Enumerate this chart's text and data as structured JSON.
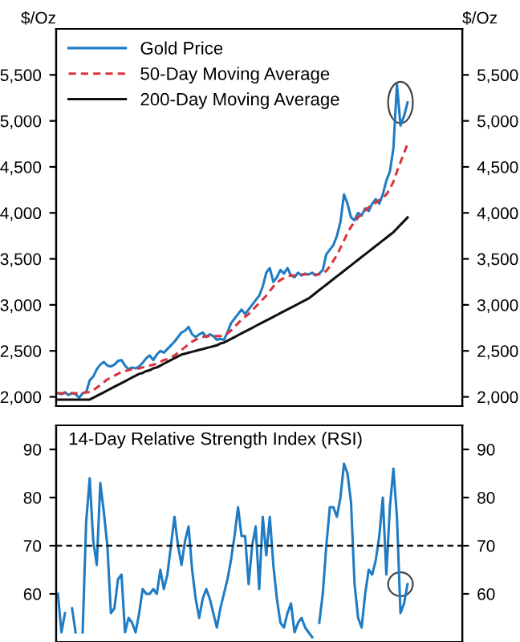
{
  "chart_data": [
    {
      "type": "line",
      "ylabel": "$/Oz",
      "y2label": "$/Oz",
      "categories": [
        null,
        null,
        null,
        null,
        null,
        null,
        null,
        null,
        null,
        null,
        null,
        null,
        null,
        null,
        null,
        null,
        null,
        null,
        null,
        null,
        null,
        null,
        null,
        null,
        null,
        null,
        null,
        null,
        null,
        null,
        null,
        null,
        null,
        null,
        null,
        null,
        null,
        null,
        null,
        null,
        null,
        null,
        null,
        null,
        null,
        null,
        null,
        null,
        null,
        null,
        null,
        null,
        null,
        null,
        null,
        null,
        null,
        null,
        null,
        null,
        null,
        null,
        null,
        null,
        null,
        null,
        null,
        null,
        null,
        null,
        null,
        null,
        null,
        null,
        null,
        null,
        null,
        null,
        null,
        null,
        null,
        null,
        null,
        null,
        null,
        null,
        null,
        null,
        null,
        null,
        null,
        null,
        null,
        null,
        null,
        null,
        null,
        null,
        null,
        null,
        null,
        null,
        null,
        null,
        null,
        null,
        null,
        null,
        null,
        null,
        null,
        null,
        null,
        null,
        null
      ],
      "series": [
        {
          "name": "Gold Price",
          "color": "#1f7cc4",
          "line_style": "solid",
          "values": [
            2040,
            2030,
            2050,
            2020,
            2040,
            2030,
            1990,
            2040,
            2050,
            2180,
            2220,
            2300,
            2350,
            2380,
            2340,
            2330,
            2350,
            2390,
            2400,
            2340,
            2300,
            2320,
            2310,
            2330,
            2370,
            2420,
            2450,
            2400,
            2460,
            2500,
            2480,
            2520,
            2560,
            2600,
            2650,
            2700,
            2720,
            2760,
            2680,
            2650,
            2680,
            2700,
            2650,
            2680,
            2660,
            2620,
            2630,
            2620,
            2700,
            2800,
            2850,
            2900,
            2950,
            2900,
            2950,
            3000,
            3050,
            3100,
            3200,
            3350,
            3400,
            3250,
            3300,
            3380,
            3340,
            3400,
            3320,
            3300,
            3350,
            3320,
            3340,
            3330,
            3350,
            3320,
            3340,
            3380,
            3550,
            3600,
            3650,
            3750,
            3900,
            4200,
            4100,
            3950,
            3920,
            4000,
            3970,
            4050,
            4020,
            4100,
            4150,
            4100,
            4200,
            4350,
            4450,
            4700,
            5400,
            4950,
            5050,
            5200,
            null,
            null,
            null,
            null,
            null,
            null,
            null,
            null,
            null,
            null,
            null,
            null,
            null,
            null,
            null
          ]
        },
        {
          "name": "50-Day Moving Average",
          "color": "#d9343c",
          "line_style": "dashed",
          "values": [
            2040,
            2040,
            2040,
            2040,
            2040,
            2040,
            2040,
            2040,
            2050,
            2050,
            2070,
            2100,
            2130,
            2160,
            2190,
            2210,
            2230,
            2250,
            2270,
            2280,
            2290,
            2300,
            2300,
            2310,
            2320,
            2330,
            2340,
            2350,
            2360,
            2380,
            2400,
            2410,
            2430,
            2450,
            2480,
            2510,
            2540,
            2570,
            2600,
            2620,
            2640,
            2650,
            2660,
            2660,
            2660,
            2660,
            2660,
            2670,
            2690,
            2720,
            2760,
            2800,
            2840,
            2870,
            2900,
            2940,
            2980,
            3020,
            3060,
            3100,
            3150,
            3200,
            3240,
            3270,
            3290,
            3310,
            3320,
            3320,
            3320,
            3330,
            3330,
            3330,
            3330,
            3330,
            3330,
            3340,
            3370,
            3420,
            3480,
            3540,
            3620,
            3700,
            3780,
            3850,
            3900,
            3950,
            3990,
            4030,
            4060,
            4090,
            4110,
            4140,
            4160,
            4200,
            4260,
            4340,
            4450,
            4550,
            4650,
            4750,
            null,
            null,
            null,
            null,
            null,
            null,
            null,
            null,
            null,
            null,
            null,
            null,
            null,
            null,
            null
          ]
        },
        {
          "name": "200-Day Moving Average",
          "color": "#111111",
          "line_style": "solid",
          "values": [
            1970,
            1970,
            1970,
            1970,
            1970,
            1970,
            1970,
            1970,
            1970,
            1970,
            1990,
            2010,
            2030,
            2050,
            2070,
            2090,
            2110,
            2130,
            2150,
            2170,
            2190,
            2210,
            2230,
            2250,
            2260,
            2280,
            2290,
            2310,
            2320,
            2340,
            2360,
            2380,
            2400,
            2420,
            2440,
            2460,
            2470,
            2480,
            2490,
            2500,
            2510,
            2520,
            2530,
            2540,
            2550,
            2560,
            2580,
            2590,
            2610,
            2630,
            2650,
            2670,
            2690,
            2710,
            2730,
            2750,
            2770,
            2790,
            2810,
            2830,
            2850,
            2870,
            2890,
            2910,
            2930,
            2950,
            2970,
            2990,
            3010,
            3030,
            3050,
            3070,
            3100,
            3130,
            3160,
            3190,
            3220,
            3250,
            3280,
            3310,
            3340,
            3370,
            3400,
            3430,
            3460,
            3490,
            3520,
            3550,
            3580,
            3610,
            3640,
            3670,
            3700,
            3730,
            3760,
            3790,
            3830,
            3870,
            3910,
            3950,
            null,
            null,
            null,
            null,
            null,
            null,
            null,
            null,
            null,
            null,
            null,
            null,
            null,
            null,
            null
          ]
        }
      ],
      "ylim": [
        1900,
        6000
      ],
      "yticks": [
        {
          "value": 2000,
          "label": "2,000"
        },
        {
          "value": 2500,
          "label": "2,500"
        },
        {
          "value": 3000,
          "label": "3,000"
        },
        {
          "value": 3500,
          "label": "3,500"
        },
        {
          "value": 4000,
          "label": "4,000"
        },
        {
          "value": 4500,
          "label": "4,500"
        },
        {
          "value": 5000,
          "label": "5,000"
        },
        {
          "value": 5500,
          "label": "5,500"
        }
      ],
      "y2lim": [
        1900,
        6000
      ],
      "y2ticks": [
        {
          "value": 2000,
          "label": "2,000"
        },
        {
          "value": 2500,
          "label": "2,500"
        },
        {
          "value": 3000,
          "label": "3,000"
        },
        {
          "value": 3500,
          "label": "3,500"
        },
        {
          "value": 4000,
          "label": "4,000"
        },
        {
          "value": 4500,
          "label": "4,500"
        },
        {
          "value": 5000,
          "label": "5,000"
        },
        {
          "value": 5500,
          "label": "5,500"
        }
      ],
      "legend": "top left",
      "grid": false,
      "tick_labels": "y",
      "marker": "none"
    },
    {
      "type": "line",
      "title": "14-Day Relative Strength Index (RSI)",
      "categories": [
        null,
        null,
        null,
        null,
        null,
        null,
        null,
        null,
        null,
        null,
        null,
        null,
        null,
        null,
        null,
        null,
        null,
        null,
        null,
        null,
        null,
        null,
        null,
        null,
        null,
        null,
        null,
        null,
        null,
        null,
        null,
        null,
        null,
        null,
        null,
        null,
        null,
        null,
        null,
        null,
        null,
        null,
        null,
        null,
        null,
        null,
        null,
        null,
        null,
        null,
        null,
        null,
        null,
        null,
        null,
        null,
        null,
        null,
        null,
        null,
        null,
        null,
        null,
        null,
        null,
        null,
        null,
        null,
        null,
        null,
        null,
        null,
        null,
        null,
        null,
        null,
        null,
        null,
        null,
        null,
        null,
        null,
        null,
        null,
        null,
        null,
        null,
        null,
        null,
        null,
        null,
        null,
        null,
        null,
        null,
        null,
        null,
        null,
        null,
        null,
        null,
        null,
        null,
        null,
        null,
        null,
        null,
        null,
        null,
        null,
        null,
        null,
        null,
        null,
        null
      ],
      "series": [
        {
          "color": "#1f7cc4",
          "line_style": "solid",
          "values": [
            60,
            52,
            56,
            null,
            57,
            52,
            null,
            52,
            75,
            84,
            71,
            66,
            83,
            77,
            70,
            56,
            57,
            63,
            64,
            52,
            55,
            54,
            52,
            56,
            61,
            60,
            60,
            61,
            60,
            65,
            61,
            64,
            70,
            76,
            70,
            66,
            71,
            74,
            65,
            59,
            55,
            59,
            61,
            59,
            56,
            53,
            57,
            60,
            63,
            67,
            72,
            78,
            72,
            72,
            62,
            70,
            74,
            61,
            76,
            68,
            76,
            66,
            59,
            54,
            53,
            56,
            58,
            52,
            54,
            55,
            53,
            52,
            51,
            null,
            54,
            60,
            70,
            78,
            78,
            76,
            80,
            87,
            85,
            79,
            62,
            55,
            53,
            60,
            65,
            64,
            67,
            72,
            80,
            64,
            78,
            86,
            76,
            56,
            58,
            62,
            null,
            null,
            null,
            null,
            null,
            null,
            null,
            null,
            null,
            null,
            null,
            null,
            null,
            null,
            null
          ]
        }
      ],
      "ylim": [
        50,
        95
      ],
      "yticks": [
        60,
        70,
        80,
        90
      ],
      "y2lim": [
        50,
        95
      ],
      "y2ticks": [
        60,
        70,
        80,
        90
      ],
      "ref_lines": [
        {
          "axis": "y",
          "value": 70,
          "color": "#111111",
          "line_style": "dashed"
        }
      ],
      "grid": false,
      "tick_labels": "y",
      "marker": "none"
    }
  ]
}
